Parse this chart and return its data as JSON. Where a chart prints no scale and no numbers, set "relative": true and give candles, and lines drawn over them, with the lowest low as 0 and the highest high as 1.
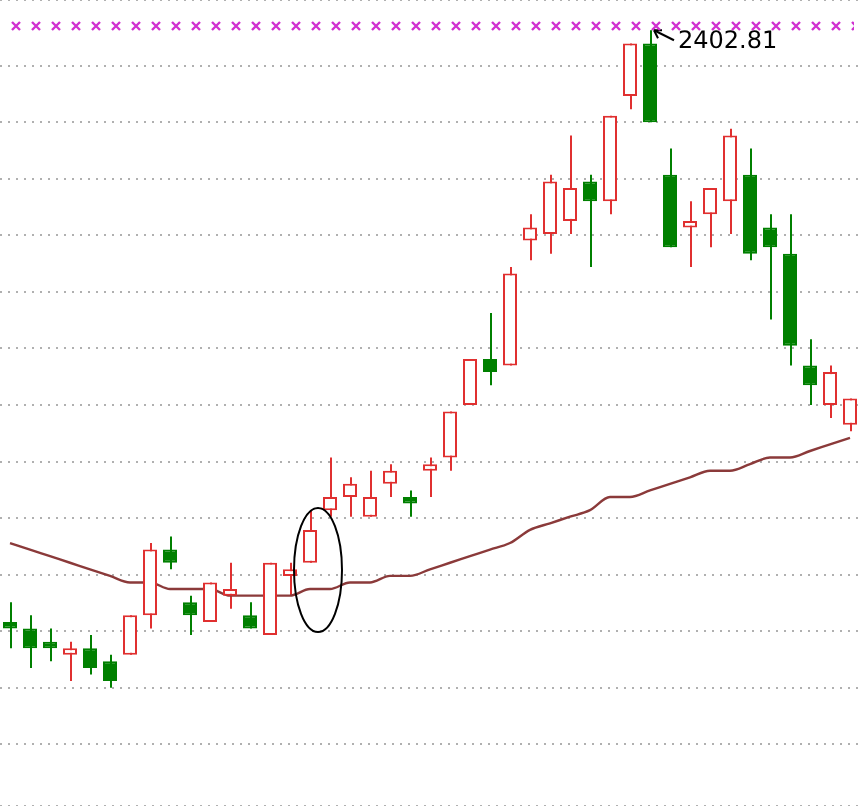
{
  "chart_data": {
    "type": "candlestick",
    "relative": true,
    "grid": "y",
    "tick_labels": false,
    "legend": false,
    "categories": [
      null,
      null,
      null,
      null,
      null,
      null,
      null,
      null,
      null,
      null,
      null,
      null,
      null,
      null,
      null,
      null,
      null,
      null,
      null,
      null,
      null,
      null,
      null,
      null,
      null,
      null,
      null,
      null,
      null,
      null,
      null,
      null,
      null,
      null,
      null,
      null,
      null,
      null,
      null,
      null,
      null,
      null,
      null
    ],
    "ohlc": [
      [
        0.1,
        0.13,
        0.06,
        0.09
      ],
      [
        0.09,
        0.11,
        0.03,
        0.06
      ],
      [
        0.07,
        0.09,
        0.04,
        0.06
      ],
      [
        0.05,
        0.07,
        0.01,
        0.06
      ],
      [
        0.06,
        0.08,
        0.02,
        0.03
      ],
      [
        0.04,
        0.05,
        0,
        0.01
      ],
      [
        0.05,
        0.11,
        0.05,
        0.11
      ],
      [
        0.11,
        0.22,
        0.09,
        0.21
      ],
      [
        0.21,
        0.23,
        0.18,
        0.19
      ],
      [
        0.13,
        0.14,
        0.08,
        0.11
      ],
      [
        0.1,
        0.16,
        0.1,
        0.16
      ],
      [
        0.14,
        0.19,
        0.12,
        0.15
      ],
      [
        0.11,
        0.13,
        0.09,
        0.09
      ],
      [
        0.08,
        0.19,
        0.08,
        0.19
      ],
      [
        0.17,
        0.19,
        0.14,
        0.18
      ],
      [
        0.19,
        0.27,
        0.19,
        0.24
      ],
      [
        0.27,
        0.35,
        0.26,
        0.29
      ],
      [
        0.29,
        0.32,
        0.26,
        0.31
      ],
      [
        0.26,
        0.33,
        0.26,
        0.29
      ],
      [
        0.31,
        0.34,
        0.29,
        0.33
      ],
      [
        0.29,
        0.3,
        0.26,
        0.28
      ],
      [
        0.33,
        0.35,
        0.29,
        0.34
      ],
      [
        0.35,
        0.42,
        0.33,
        0.42
      ],
      [
        0.43,
        0.5,
        0.43,
        0.5
      ],
      [
        0.5,
        0.57,
        0.46,
        0.48
      ],
      [
        0.49,
        0.64,
        0.49,
        0.63
      ],
      [
        0.68,
        0.72,
        0.65,
        0.7
      ],
      [
        0.69,
        0.78,
        0.66,
        0.77
      ],
      [
        0.71,
        0.84,
        0.69,
        0.76
      ],
      [
        0.77,
        0.78,
        0.64,
        0.74
      ],
      [
        0.74,
        0.87,
        0.72,
        0.87
      ],
      [
        0.9,
        0.98,
        0.88,
        0.98
      ],
      [
        0.98,
        1,
        0.86,
        0.86
      ],
      [
        0.78,
        0.82,
        0.67,
        0.67
      ],
      [
        0.7,
        0.74,
        0.64,
        0.71
      ],
      [
        0.72,
        0.76,
        0.67,
        0.76
      ],
      [
        0.74,
        0.85,
        0.69,
        0.84
      ],
      [
        0.78,
        0.82,
        0.65,
        0.66
      ],
      [
        0.7,
        0.72,
        0.56,
        0.67
      ],
      [
        0.66,
        0.72,
        0.49,
        0.52
      ],
      [
        0.49,
        0.53,
        0.43,
        0.46
      ],
      [
        0.43,
        0.49,
        0.41,
        0.48
      ],
      [
        0.4,
        0.44,
        0.39,
        0.44
      ]
    ],
    "colors": [
      "#008000",
      "#008000",
      "#008000",
      "#e03030",
      "#008000",
      "#008000",
      "#e03030",
      "#e03030",
      "#008000",
      "#008000",
      "#e03030",
      "#e03030",
      "#008000",
      "#e03030",
      "#e03030",
      "#e03030",
      "#e03030",
      "#e03030",
      "#e03030",
      "#e03030",
      "#008000",
      "#e03030",
      "#e03030",
      "#e03030",
      "#008000",
      "#e03030",
      "#e03030",
      "#e03030",
      "#e03030",
      "#008000",
      "#e03030",
      "#e03030",
      "#008000",
      "#008000",
      "#e03030",
      "#e03030",
      "#e03030",
      "#008000",
      "#008000",
      "#008000",
      "#008000",
      "#e03030",
      "#e03030"
    ],
    "series": [
      {
        "type": "line",
        "color": "#8b3a3a",
        "values": [
          0.22,
          0.21,
          0.2,
          0.19,
          0.18,
          0.17,
          0.16,
          0.16,
          0.15,
          0.15,
          0.15,
          0.14,
          0.14,
          0.14,
          0.14,
          0.15,
          0.15,
          0.16,
          0.16,
          0.17,
          0.17,
          0.18,
          0.19,
          0.2,
          0.21,
          0.22,
          0.24,
          0.25,
          0.26,
          0.27,
          0.29,
          0.29,
          0.3,
          0.31,
          0.32,
          0.33,
          0.33,
          0.34,
          0.35,
          0.35,
          0.36,
          0.37,
          0.38
        ]
      }
    ],
    "annotations": [
      "2402.81"
    ]
  }
}
